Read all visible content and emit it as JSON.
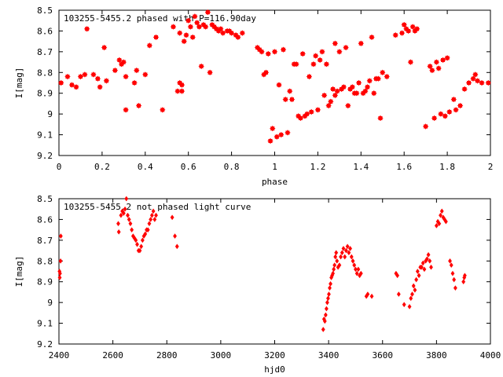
{
  "chart_data": [
    {
      "type": "scatter",
      "title": "103255-5455.2 phased with P=116.90day",
      "xlabel": "phase",
      "ylabel": "I[mag]",
      "xlim": [
        0,
        2
      ],
      "ylim": [
        8.5,
        9.2
      ],
      "y_inverted": true,
      "grid": false,
      "marker_color": "#ff0000",
      "x_ticks": [
        "0",
        "0.2",
        "0.4",
        "0.6",
        "0.8",
        "1",
        "1.2",
        "1.4",
        "1.6",
        "1.8",
        "2"
      ],
      "y_ticks": [
        "8.5",
        "8.6",
        "8.7",
        "8.8",
        "8.9",
        "9",
        "9.1",
        "9.2"
      ],
      "series": [
        {
          "points": [
            [
              0.01,
              8.85
            ],
            [
              0.04,
              8.82
            ],
            [
              0.06,
              8.86
            ],
            [
              0.08,
              8.87
            ],
            [
              0.1,
              8.82
            ],
            [
              0.12,
              8.81
            ],
            [
              0.13,
              8.59
            ],
            [
              0.16,
              8.81
            ],
            [
              0.18,
              8.83
            ],
            [
              0.19,
              8.87
            ],
            [
              0.21,
              8.68
            ],
            [
              0.22,
              8.84
            ],
            [
              0.26,
              8.79
            ],
            [
              0.28,
              8.74
            ],
            [
              0.29,
              8.76
            ],
            [
              0.3,
              8.75
            ],
            [
              0.31,
              8.98
            ],
            [
              0.31,
              8.82
            ],
            [
              0.35,
              8.85
            ],
            [
              0.36,
              8.79
            ],
            [
              0.37,
              8.96
            ],
            [
              0.4,
              8.81
            ],
            [
              0.42,
              8.67
            ],
            [
              0.45,
              8.63
            ],
            [
              0.48,
              8.98
            ],
            [
              0.53,
              8.58
            ],
            [
              0.55,
              8.89
            ],
            [
              0.56,
              8.85
            ],
            [
              0.56,
              8.61
            ],
            [
              0.57,
              8.86
            ],
            [
              0.57,
              8.89
            ],
            [
              0.58,
              8.65
            ],
            [
              0.59,
              8.62
            ],
            [
              0.6,
              8.55
            ],
            [
              0.61,
              8.58
            ],
            [
              0.62,
              8.63
            ],
            [
              0.63,
              8.53
            ],
            [
              0.64,
              8.56
            ],
            [
              0.65,
              8.58
            ],
            [
              0.66,
              8.77
            ],
            [
              0.67,
              8.57
            ],
            [
              0.68,
              8.58
            ],
            [
              0.69,
              8.51
            ],
            [
              0.7,
              8.8
            ],
            [
              0.71,
              8.57
            ],
            [
              0.72,
              8.58
            ],
            [
              0.73,
              8.59
            ],
            [
              0.74,
              8.6
            ],
            [
              0.75,
              8.59
            ],
            [
              0.76,
              8.61
            ],
            [
              0.78,
              8.6
            ],
            [
              0.79,
              8.6
            ],
            [
              0.8,
              8.61
            ],
            [
              0.82,
              8.62
            ],
            [
              0.83,
              8.63
            ],
            [
              0.85,
              8.61
            ],
            [
              0.92,
              8.68
            ],
            [
              0.93,
              8.69
            ],
            [
              0.94,
              8.7
            ],
            [
              0.95,
              8.81
            ],
            [
              0.96,
              8.8
            ],
            [
              0.97,
              8.71
            ],
            [
              0.98,
              9.13
            ],
            [
              0.99,
              9.07
            ],
            [
              1.0,
              8.7
            ],
            [
              1.01,
              9.11
            ],
            [
              1.02,
              8.86
            ],
            [
              1.03,
              9.1
            ],
            [
              1.04,
              8.69
            ],
            [
              1.05,
              8.93
            ],
            [
              1.06,
              9.09
            ],
            [
              1.07,
              8.89
            ],
            [
              1.08,
              8.93
            ],
            [
              1.09,
              8.76
            ],
            [
              1.1,
              8.76
            ],
            [
              1.11,
              9.01
            ],
            [
              1.12,
              9.02
            ],
            [
              1.13,
              8.71
            ],
            [
              1.14,
              9.01
            ],
            [
              1.15,
              9.0
            ],
            [
              1.16,
              8.82
            ],
            [
              1.17,
              8.99
            ],
            [
              1.18,
              8.76
            ],
            [
              1.19,
              8.72
            ],
            [
              1.2,
              8.98
            ],
            [
              1.21,
              8.74
            ],
            [
              1.22,
              8.7
            ],
            [
              1.23,
              8.91
            ],
            [
              1.24,
              8.76
            ],
            [
              1.25,
              8.96
            ],
            [
              1.26,
              8.94
            ],
            [
              1.27,
              8.88
            ],
            [
              1.28,
              8.91
            ],
            [
              1.28,
              8.66
            ],
            [
              1.29,
              8.89
            ],
            [
              1.3,
              8.7
            ],
            [
              1.31,
              8.88
            ],
            [
              1.32,
              8.87
            ],
            [
              1.33,
              8.68
            ],
            [
              1.34,
              8.96
            ],
            [
              1.35,
              8.88
            ],
            [
              1.36,
              8.87
            ],
            [
              1.37,
              8.9
            ],
            [
              1.38,
              8.9
            ],
            [
              1.39,
              8.85
            ],
            [
              1.4,
              8.66
            ],
            [
              1.41,
              8.9
            ],
            [
              1.42,
              8.89
            ],
            [
              1.43,
              8.87
            ],
            [
              1.44,
              8.84
            ],
            [
              1.45,
              8.63
            ],
            [
              1.46,
              8.9
            ],
            [
              1.47,
              8.83
            ],
            [
              1.48,
              8.83
            ],
            [
              1.49,
              9.02
            ],
            [
              1.5,
              8.8
            ],
            [
              1.52,
              8.82
            ],
            [
              1.56,
              8.62
            ],
            [
              1.59,
              8.61
            ],
            [
              1.6,
              8.57
            ],
            [
              1.61,
              8.59
            ],
            [
              1.62,
              8.6
            ],
            [
              1.63,
              8.75
            ],
            [
              1.64,
              8.58
            ],
            [
              1.65,
              8.6
            ],
            [
              1.66,
              8.59
            ],
            [
              1.7,
              9.06
            ],
            [
              1.72,
              8.77
            ],
            [
              1.73,
              8.79
            ],
            [
              1.74,
              9.02
            ],
            [
              1.75,
              8.75
            ],
            [
              1.76,
              8.78
            ],
            [
              1.77,
              9.0
            ],
            [
              1.78,
              8.74
            ],
            [
              1.79,
              9.01
            ],
            [
              1.8,
              8.73
            ],
            [
              1.81,
              8.99
            ],
            [
              1.83,
              8.93
            ],
            [
              1.84,
              8.98
            ],
            [
              1.86,
              8.96
            ],
            [
              1.88,
              8.88
            ],
            [
              1.9,
              8.85
            ],
            [
              1.92,
              8.83
            ],
            [
              1.93,
              8.81
            ],
            [
              1.94,
              8.84
            ],
            [
              1.96,
              8.85
            ],
            [
              1.99,
              8.85
            ]
          ]
        }
      ]
    },
    {
      "type": "scatter",
      "title": "103255-5455.2 not phased light curve",
      "xlabel": "hjd0",
      "ylabel": "I[mag]",
      "xlim": [
        2400,
        4000
      ],
      "ylim": [
        8.5,
        9.2
      ],
      "y_inverted": true,
      "grid": false,
      "marker_color": "#ff0000",
      "x_ticks": [
        "2400",
        "2600",
        "2800",
        "3000",
        "3200",
        "3400",
        "3600",
        "3800",
        "4000"
      ],
      "y_ticks": [
        "8.5",
        "8.6",
        "8.7",
        "8.8",
        "8.9",
        "9",
        "9.1",
        "9.2"
      ],
      "series": [
        {
          "points": [
            [
              2402,
              8.85
            ],
            [
              2403,
              8.88
            ],
            [
              2404,
              8.86
            ],
            [
              2406,
              8.8
            ],
            [
              2407,
              8.68
            ],
            [
              2620,
              8.62
            ],
            [
              2622,
              8.66
            ],
            [
              2630,
              8.58
            ],
            [
              2635,
              8.56
            ],
            [
              2640,
              8.57
            ],
            [
              2645,
              8.55
            ],
            [
              2650,
              8.5
            ],
            [
              2655,
              8.58
            ],
            [
              2660,
              8.6
            ],
            [
              2665,
              8.62
            ],
            [
              2670,
              8.65
            ],
            [
              2675,
              8.68
            ],
            [
              2680,
              8.69
            ],
            [
              2685,
              8.7
            ],
            [
              2690,
              8.72
            ],
            [
              2695,
              8.75
            ],
            [
              2700,
              8.75
            ],
            [
              2705,
              8.73
            ],
            [
              2710,
              8.7
            ],
            [
              2715,
              8.68
            ],
            [
              2720,
              8.67
            ],
            [
              2725,
              8.65
            ],
            [
              2730,
              8.65
            ],
            [
              2735,
              8.62
            ],
            [
              2740,
              8.6
            ],
            [
              2745,
              8.58
            ],
            [
              2750,
              8.56
            ],
            [
              2755,
              8.6
            ],
            [
              2760,
              8.58
            ],
            [
              2820,
              8.59
            ],
            [
              2830,
              8.68
            ],
            [
              2838,
              8.73
            ],
            [
              3380,
              9.13
            ],
            [
              3383,
              9.08
            ],
            [
              3386,
              9.09
            ],
            [
              3389,
              9.06
            ],
            [
              3392,
              9.03
            ],
            [
              3395,
              9.0
            ],
            [
              3398,
              8.98
            ],
            [
              3401,
              8.96
            ],
            [
              3404,
              8.93
            ],
            [
              3407,
              8.91
            ],
            [
              3410,
              8.88
            ],
            [
              3413,
              8.87
            ],
            [
              3416,
              8.86
            ],
            [
              3419,
              8.84
            ],
            [
              3422,
              8.82
            ],
            [
              3425,
              8.78
            ],
            [
              3428,
              8.76
            ],
            [
              3431,
              8.8
            ],
            [
              3435,
              8.83
            ],
            [
              3440,
              8.82
            ],
            [
              3445,
              8.78
            ],
            [
              3450,
              8.76
            ],
            [
              3455,
              8.74
            ],
            [
              3460,
              8.78
            ],
            [
              3465,
              8.75
            ],
            [
              3470,
              8.73
            ],
            [
              3475,
              8.76
            ],
            [
              3480,
              8.74
            ],
            [
              3485,
              8.78
            ],
            [
              3490,
              8.8
            ],
            [
              3495,
              8.82
            ],
            [
              3500,
              8.84
            ],
            [
              3505,
              8.86
            ],
            [
              3510,
              8.84
            ],
            [
              3515,
              8.87
            ],
            [
              3520,
              8.86
            ],
            [
              3540,
              8.97
            ],
            [
              3545,
              8.96
            ],
            [
              3560,
              8.97
            ],
            [
              3650,
              8.86
            ],
            [
              3655,
              8.87
            ],
            [
              3660,
              8.96
            ],
            [
              3680,
              9.01
            ],
            [
              3700,
              9.02
            ],
            [
              3705,
              8.98
            ],
            [
              3710,
              8.96
            ],
            [
              3715,
              8.92
            ],
            [
              3720,
              8.94
            ],
            [
              3725,
              8.89
            ],
            [
              3730,
              8.85
            ],
            [
              3735,
              8.87
            ],
            [
              3740,
              8.83
            ],
            [
              3745,
              8.83
            ],
            [
              3750,
              8.81
            ],
            [
              3755,
              8.84
            ],
            [
              3760,
              8.8
            ],
            [
              3765,
              8.79
            ],
            [
              3770,
              8.77
            ],
            [
              3775,
              8.8
            ],
            [
              3780,
              8.83
            ],
            [
              3800,
              8.63
            ],
            [
              3805,
              8.61
            ],
            [
              3810,
              8.62
            ],
            [
              3815,
              8.58
            ],
            [
              3820,
              8.56
            ],
            [
              3825,
              8.59
            ],
            [
              3830,
              8.6
            ],
            [
              3835,
              8.61
            ],
            [
              3850,
              8.8
            ],
            [
              3855,
              8.82
            ],
            [
              3860,
              8.86
            ],
            [
              3865,
              8.89
            ],
            [
              3870,
              8.93
            ],
            [
              3900,
              8.9
            ],
            [
              3903,
              8.88
            ],
            [
              3905,
              8.87
            ]
          ]
        }
      ]
    }
  ]
}
